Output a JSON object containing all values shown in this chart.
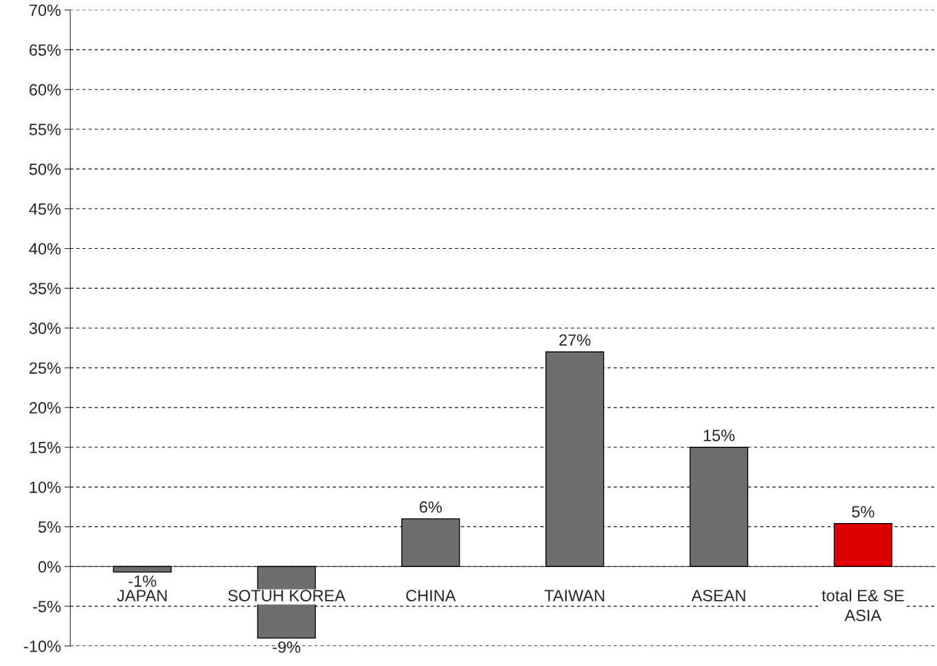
{
  "chart_data": {
    "type": "bar",
    "categories": [
      "JAPAN",
      "SOTUH KOREA",
      "CHINA",
      "TAIWAN",
      "ASEAN",
      "total E& SE ASIA"
    ],
    "values": [
      -0.7,
      -9,
      6,
      27,
      15,
      5.4
    ],
    "value_labels": [
      "-1%",
      "-9%",
      "6%",
      "27%",
      "15%",
      "5%"
    ],
    "colors": [
      "#6e6e6e",
      "#6e6e6e",
      "#6e6e6e",
      "#6e6e6e",
      "#6e6e6e",
      "#e00000"
    ],
    "ylim": [
      -10,
      70
    ],
    "yticks": [
      {
        "value": -10,
        "label": "-10%"
      },
      {
        "value": -5,
        "label": "-5%"
      },
      {
        "value": 0,
        "label": "0%"
      },
      {
        "value": 5,
        "label": "5%"
      },
      {
        "value": 10,
        "label": "10%"
      },
      {
        "value": 15,
        "label": "15%"
      },
      {
        "value": 20,
        "label": "20%"
      },
      {
        "value": 25,
        "label": "25%"
      },
      {
        "value": 30,
        "label": "30%"
      },
      {
        "value": 35,
        "label": "35%"
      },
      {
        "value": 40,
        "label": "40%"
      },
      {
        "value": 45,
        "label": "45%"
      },
      {
        "value": 50,
        "label": "50%"
      },
      {
        "value": 55,
        "label": "55%"
      },
      {
        "value": 60,
        "label": "60%"
      },
      {
        "value": 65,
        "label": "65%"
      },
      {
        "value": 70,
        "label": "70%"
      }
    ],
    "grid": "y"
  }
}
